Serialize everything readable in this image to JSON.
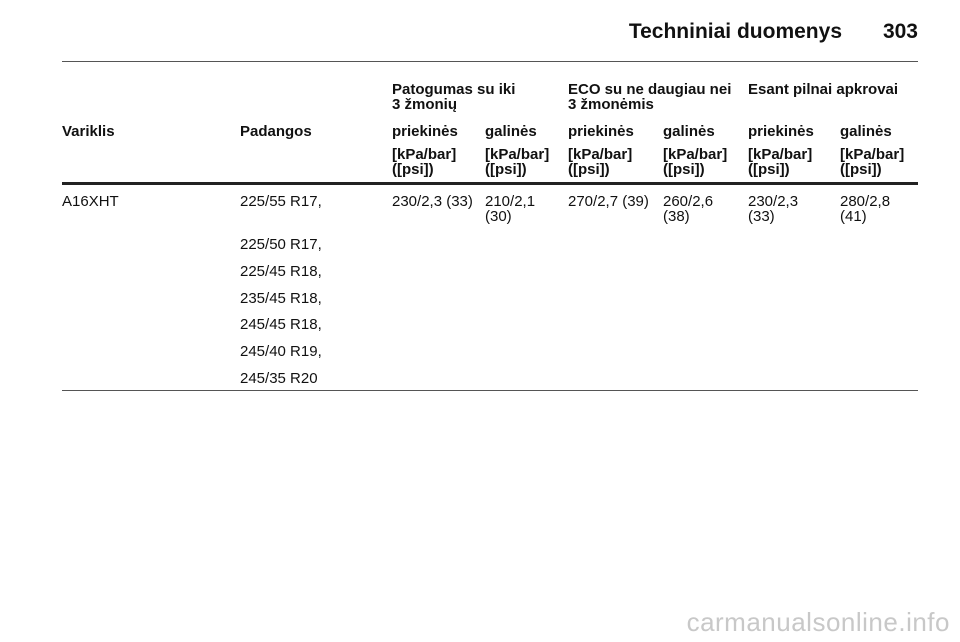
{
  "header": {
    "title": "Techniniai duomenys",
    "page": "303"
  },
  "table": {
    "groups": [
      "Patogumas su iki\n3 žmonių",
      "ECO su ne daugiau nei\n3 žmonėmis",
      "Esant pilnai apkrovai"
    ],
    "columns": [
      "Variklis",
      "Padangos",
      "priekinės",
      "galinės",
      "priekinės",
      "galinės",
      "priekinės",
      "galinės"
    ],
    "units": [
      "[kPa/bar]\n([psi])",
      "[kPa/bar]\n([psi])",
      "[kPa/bar]\n([psi])",
      "[kPa/bar]\n([psi])",
      "[kPa/bar]\n([psi])",
      "[kPa/bar]\n([psi])"
    ],
    "rows": [
      {
        "engine": "A16XHT",
        "tyres": [
          "225/55 R17,",
          "225/50 R17,",
          "225/45 R18,",
          "235/45 R18,",
          "245/45 R18,",
          "245/40 R19,",
          "245/35 R20"
        ],
        "pressures": [
          "230/2,3 (33)",
          "210/2,1\n(30)",
          "270/2,7 (39)",
          "260/2,6\n(38)",
          "230/2,3\n(33)",
          "280/2,8\n(41)"
        ]
      }
    ]
  },
  "watermark": "carmanualsonline.info"
}
